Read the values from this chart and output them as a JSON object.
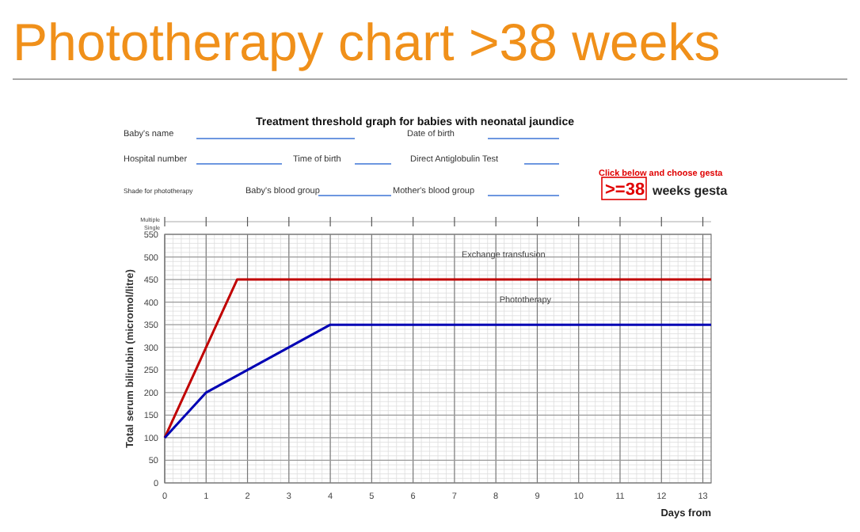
{
  "chart_data": {
    "type": "line",
    "title": "Phototherapy chart >38 weeks",
    "subtitle": "Treatment threshold graph for babies with neonatal jaundice",
    "xlabel": "Days from",
    "ylabel": "Total serum bilirubin  (micromol/litre)",
    "xlim": [
      0,
      13.2
    ],
    "xticks": [
      0,
      1,
      2,
      3,
      4,
      5,
      6,
      7,
      8,
      9,
      10,
      11,
      12,
      13
    ],
    "ylim": [
      0,
      550
    ],
    "yticks": [
      0,
      50,
      100,
      150,
      200,
      250,
      300,
      350,
      400,
      450,
      500,
      550
    ],
    "grid": true,
    "marker": "none",
    "line_style": "solid",
    "series": [
      {
        "name": "Exchange transfusion",
        "color": "#c00000",
        "x": [
          0,
          1.75,
          13.2
        ],
        "values": [
          100,
          450,
          450
        ]
      },
      {
        "name": "Phototherapy",
        "color": "#0000b4",
        "x": [
          0,
          1,
          4,
          13.2
        ],
        "values": [
          100,
          200,
          350,
          350
        ]
      }
    ],
    "annotations": [
      "Baby's name",
      "Date of birth",
      "Hospital number",
      "Time of birth",
      "Direct Antiglobulin Test",
      "Shade for phototherapy",
      "Baby's blood group",
      "Mother's blood group",
      "Click below and choose gesta",
      ">=38",
      "weeks gesta",
      "Multiple",
      "Single"
    ]
  }
}
